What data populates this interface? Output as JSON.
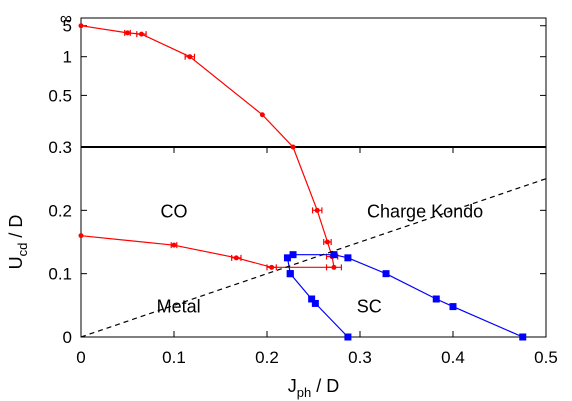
{
  "chart_data": {
    "type": "scatter",
    "xlabel": {
      "main": "J",
      "sub": "ph",
      "rest": " / D"
    },
    "ylabel": {
      "main": "U",
      "sub": "cd",
      "rest": " / D"
    },
    "xlim": [
      0,
      0.5
    ],
    "x_ticks": [
      {
        "value": 0,
        "label": "0"
      },
      {
        "value": 0.1,
        "label": "0.1"
      },
      {
        "value": 0.2,
        "label": "0.2"
      },
      {
        "value": 0.3,
        "label": "0.3"
      },
      {
        "value": 0.4,
        "label": "0.4"
      },
      {
        "value": 0.5,
        "label": "0.5"
      }
    ],
    "y_axis_note": "linear scale for 0 to 0.3, reciprocal scale (1/U) above 0.3 up to infinity",
    "y_ticks": [
      {
        "value": 0,
        "label": "0"
      },
      {
        "value": 0.1,
        "label": "0.1"
      },
      {
        "value": 0.2,
        "label": "0.2"
      },
      {
        "value": 0.3,
        "label": "0.3"
      },
      {
        "value": 0.5,
        "label": "0.5"
      },
      {
        "value": 1,
        "label": "1"
      },
      {
        "value": 5,
        "label": "5"
      },
      {
        "value": "inf",
        "label": "∞"
      }
    ],
    "grid": false,
    "region_labels": [
      {
        "text": "CO",
        "x": 0.1,
        "y": 0.2
      },
      {
        "text": "Charge Kondo",
        "x": 0.37,
        "y": 0.2
      },
      {
        "text": "Metal",
        "x": 0.105,
        "y": 0.05
      },
      {
        "text": "SC",
        "x": 0.31,
        "y": 0.05
      }
    ],
    "series": [
      {
        "color": "#ff0000",
        "marker": "circle",
        "points": [
          {
            "x": 0.0,
            "y": 5.0
          },
          {
            "x": 0.05,
            "y": 2.6,
            "xerr": 0.003
          },
          {
            "x": 0.065,
            "y": 2.4,
            "xerr": 0.005
          },
          {
            "x": 0.117,
            "y": 1.0,
            "xerr": 0.005
          },
          {
            "x": 0.195,
            "y": 0.4
          },
          {
            "x": 0.228,
            "y": 0.3
          },
          {
            "x": 0.254,
            "y": 0.2,
            "xerr": 0.005
          },
          {
            "x": 0.265,
            "y": 0.15,
            "xerr": 0.004
          },
          {
            "x": 0.27,
            "y": 0.127,
            "xerr": 0.006
          },
          {
            "x": 0.272,
            "y": 0.11,
            "xerr": 0.008
          },
          {
            "x": 0.205,
            "y": 0.11,
            "xerr": 0.005
          },
          {
            "x": 0.167,
            "y": 0.125,
            "xerr": 0.005
          },
          {
            "x": 0.1,
            "y": 0.145,
            "xerr": 0.003
          },
          {
            "x": 0.0,
            "y": 0.16
          }
        ]
      },
      {
        "color": "#0000ff",
        "marker": "square",
        "points": [
          {
            "x": 0.225,
            "y": 0.1
          },
          {
            "x": 0.222,
            "y": 0.125
          },
          {
            "x": 0.228,
            "y": 0.13
          },
          {
            "x": 0.272,
            "y": 0.13
          },
          {
            "x": 0.287,
            "y": 0.125
          },
          {
            "x": 0.328,
            "y": 0.1
          },
          {
            "x": 0.382,
            "y": 0.06
          },
          {
            "x": 0.4,
            "y": 0.048
          },
          {
            "x": 0.475,
            "y": 0.0
          }
        ]
      },
      {
        "color": "#0000ff",
        "marker": "square",
        "points": [
          {
            "x": 0.225,
            "y": 0.1
          },
          {
            "x": 0.248,
            "y": 0.06
          },
          {
            "x": 0.252,
            "y": 0.053
          },
          {
            "x": 0.287,
            "y": 0.0
          }
        ]
      },
      {
        "color": "#000000",
        "style": "dashed",
        "marker": "none",
        "points": [
          {
            "x": 0.0,
            "y": 0.0
          },
          {
            "x": 0.5,
            "y": 0.25
          }
        ]
      }
    ]
  }
}
